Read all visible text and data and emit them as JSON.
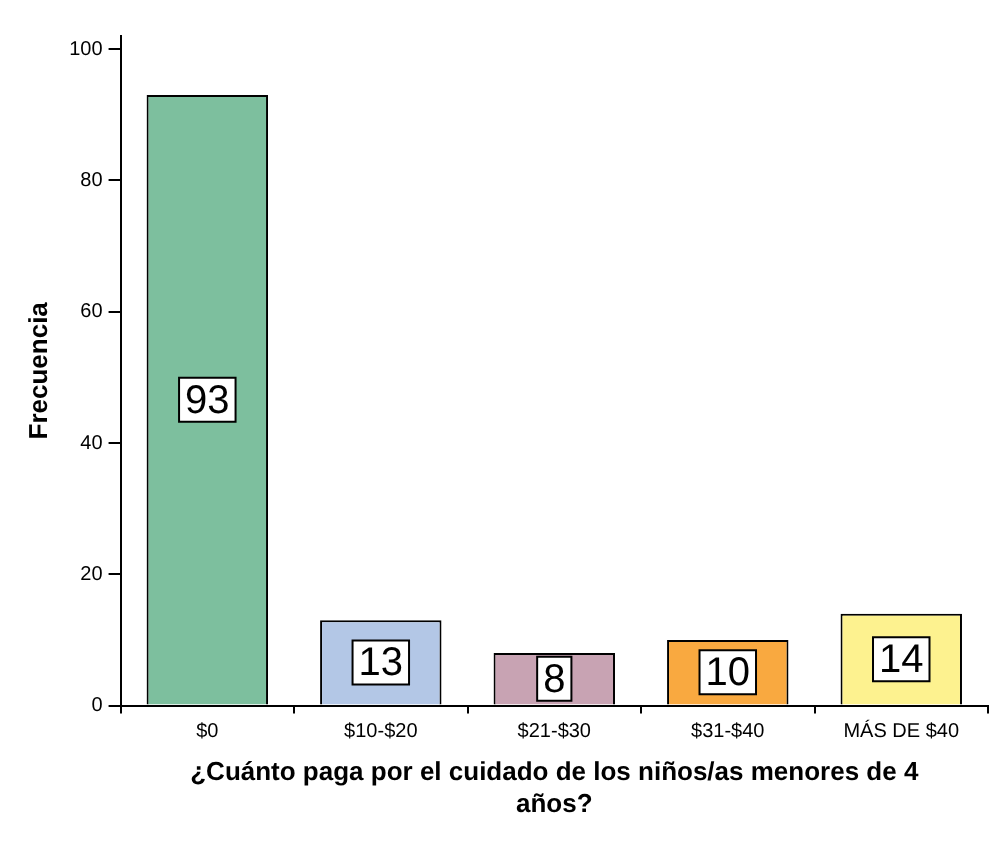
{
  "chart_data": {
    "type": "bar",
    "xlabel": "¿Cuánto paga por el cuidado de los niños/as menores de 4 años?",
    "ylabel": "Frecuencia",
    "categories": [
      "$0",
      "$10-$20",
      "$21-$30",
      "$31-$40",
      "MÁS DE $40"
    ],
    "values": [
      93,
      13,
      8,
      10,
      14
    ],
    "colors": [
      "#7dbf9e",
      "#b3c7e6",
      "#c8a3b3",
      "#f9a940",
      "#fdf28f"
    ],
    "ylim": [
      0,
      102
    ],
    "yticks": [
      0,
      20,
      40,
      60,
      80,
      100
    ],
    "grid": false,
    "legend": false,
    "data_labels": true
  }
}
